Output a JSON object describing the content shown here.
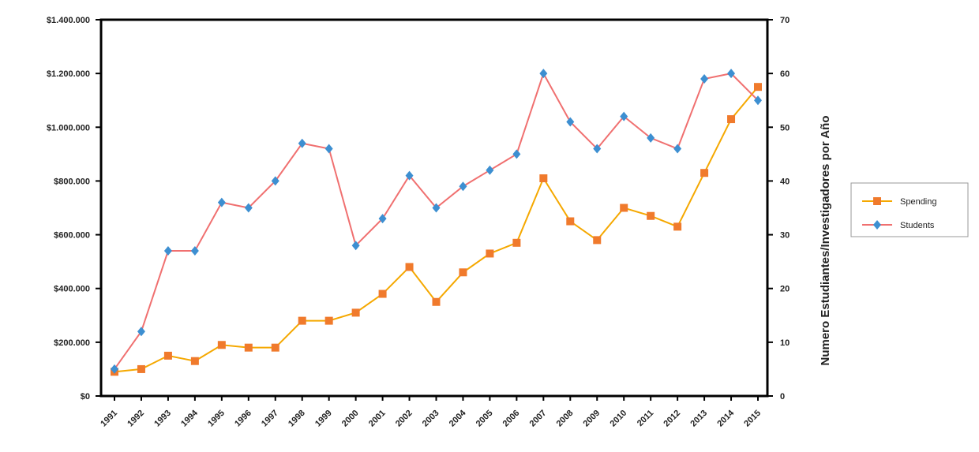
{
  "chart_data": {
    "type": "line",
    "title": "",
    "xlabel": "",
    "ylabel_left": "",
    "ylabel_right": "Numero Estudiantes/Investigadores por Año",
    "categories": [
      "1991",
      "1992",
      "1993",
      "1994",
      "1995",
      "1996",
      "1997",
      "1998",
      "1999",
      "2000",
      "2001",
      "2002",
      "2003",
      "2004",
      "2005",
      "2006",
      "2007",
      "2008",
      "2009",
      "2010",
      "2011",
      "2012",
      "2013",
      "2014",
      "2015"
    ],
    "y_left": {
      "min": 0,
      "max": 1400000,
      "step": 200000,
      "tick_labels": [
        "$0",
        "$200.000",
        "$400.000",
        "$600.000",
        "$800.000",
        "$1.000.000",
        "$1.200.000",
        "$1.400.000"
      ]
    },
    "y_right": {
      "min": 0,
      "max": 70,
      "step": 10,
      "tick_labels": [
        "0",
        "10",
        "20",
        "30",
        "40",
        "50",
        "60",
        "70"
      ]
    },
    "grid": false,
    "legend_position": "right",
    "series": [
      {
        "name": "Spending",
        "axis": "left",
        "color": "#f07a2c",
        "line_color": "#f5a800",
        "marker": "square",
        "values": [
          90000,
          100000,
          150000,
          130000,
          190000,
          180000,
          180000,
          280000,
          280000,
          310000,
          380000,
          480000,
          350000,
          460000,
          530000,
          570000,
          810000,
          650000,
          580000,
          700000,
          670000,
          630000,
          830000,
          1030000,
          1150000
        ]
      },
      {
        "name": "Students",
        "axis": "right",
        "color": "#3d8fd1",
        "line_color": "#f07070",
        "marker": "diamond",
        "values": [
          5,
          12,
          27,
          27,
          36,
          35,
          40,
          47,
          46,
          28,
          33,
          41,
          35,
          39,
          42,
          45,
          60,
          51,
          46,
          52,
          48,
          46,
          59,
          60,
          55
        ]
      }
    ]
  }
}
